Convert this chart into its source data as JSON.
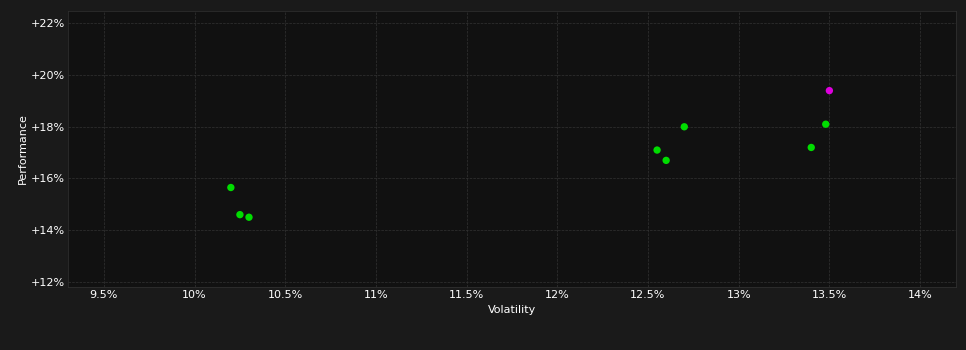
{
  "background_color": "#1a1a1a",
  "plot_bg_color": "#111111",
  "grid_color": "#333333",
  "text_color": "#ffffff",
  "xlabel": "Volatility",
  "ylabel": "Performance",
  "xlim": [
    0.093,
    0.142
  ],
  "ylim": [
    0.118,
    0.225
  ],
  "xticks": [
    0.095,
    0.1,
    0.105,
    0.11,
    0.115,
    0.12,
    0.125,
    0.13,
    0.135,
    0.14
  ],
  "xtick_labels": [
    "9.5%",
    "10%",
    "10.5%",
    "11%",
    "11.5%",
    "12%",
    "12.5%",
    "13%",
    "13.5%",
    "14%"
  ],
  "yticks": [
    0.12,
    0.14,
    0.16,
    0.18,
    0.2,
    0.22
  ],
  "ytick_labels": [
    "+12%",
    "+14%",
    "+16%",
    "+18%",
    "+20%",
    "+22%"
  ],
  "green_points": [
    [
      0.102,
      0.1565
    ],
    [
      0.1025,
      0.146
    ],
    [
      0.103,
      0.145
    ],
    [
      0.1255,
      0.171
    ],
    [
      0.126,
      0.167
    ],
    [
      0.127,
      0.18
    ],
    [
      0.134,
      0.172
    ],
    [
      0.1348,
      0.181
    ]
  ],
  "magenta_points": [
    [
      0.135,
      0.194
    ]
  ],
  "green_color": "#00dd00",
  "magenta_color": "#dd00dd",
  "marker_size": 28
}
